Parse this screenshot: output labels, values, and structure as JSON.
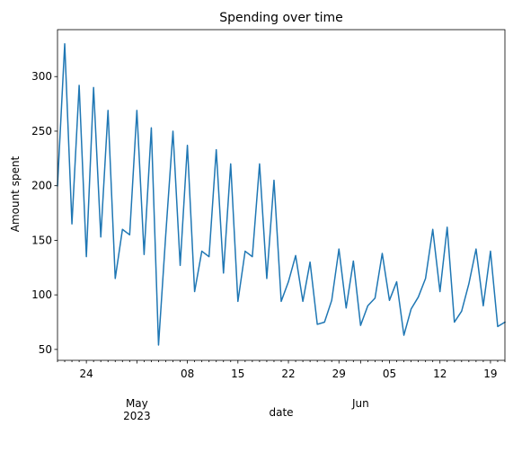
{
  "chart_data": {
    "type": "line",
    "title": "Spending over time",
    "xlabel": "date",
    "ylabel": "Amount spent",
    "grid": false,
    "line_color": "#1f77b4",
    "xlim": [
      "2023-04-20",
      "2023-06-21"
    ],
    "ylim": [
      40,
      343
    ],
    "y_ticks": [
      50,
      100,
      150,
      200,
      250,
      300
    ],
    "x_major_ticks": [
      {
        "date": "2023-04-24",
        "label": "24"
      },
      {
        "date": "2023-05-01",
        "label": "May\n2023"
      },
      {
        "date": "2023-05-08",
        "label": "08"
      },
      {
        "date": "2023-05-15",
        "label": "15"
      },
      {
        "date": "2023-05-22",
        "label": "22"
      },
      {
        "date": "2023-05-29",
        "label": "29"
      },
      {
        "date": "2023-06-01",
        "label": "Jun"
      },
      {
        "date": "2023-06-05",
        "label": "05"
      },
      {
        "date": "2023-06-12",
        "label": "12"
      },
      {
        "date": "2023-06-19",
        "label": "19"
      }
    ],
    "series": [
      {
        "x": [
          "2023-04-20",
          "2023-04-21",
          "2023-04-22",
          "2023-04-23",
          "2023-04-24",
          "2023-04-25",
          "2023-04-26",
          "2023-04-27",
          "2023-04-28",
          "2023-04-29",
          "2023-04-30",
          "2023-05-01",
          "2023-05-02",
          "2023-05-03",
          "2023-05-04",
          "2023-05-05",
          "2023-05-06",
          "2023-05-07",
          "2023-05-08",
          "2023-05-09",
          "2023-05-10",
          "2023-05-11",
          "2023-05-12",
          "2023-05-13",
          "2023-05-14",
          "2023-05-15",
          "2023-05-16",
          "2023-05-17",
          "2023-05-18",
          "2023-05-19",
          "2023-05-20",
          "2023-05-21",
          "2023-05-22",
          "2023-05-23",
          "2023-05-24",
          "2023-05-25",
          "2023-05-26",
          "2023-05-27",
          "2023-05-28",
          "2023-05-29",
          "2023-05-30",
          "2023-05-31",
          "2023-06-01",
          "2023-06-02",
          "2023-06-03",
          "2023-06-04",
          "2023-06-05",
          "2023-06-06",
          "2023-06-07",
          "2023-06-08",
          "2023-06-09",
          "2023-06-10",
          "2023-06-11",
          "2023-06-12",
          "2023-06-13",
          "2023-06-14",
          "2023-06-15",
          "2023-06-16",
          "2023-06-17",
          "2023-06-18",
          "2023-06-19",
          "2023-06-20",
          "2023-06-21"
        ],
        "values": [
          200,
          330,
          165,
          292,
          135,
          290,
          153,
          269,
          115,
          160,
          155,
          269,
          137,
          253,
          54,
          155,
          250,
          127,
          237,
          103,
          140,
          135,
          233,
          120,
          220,
          94,
          140,
          135,
          220,
          115,
          205,
          94,
          112,
          136,
          94,
          130,
          73,
          75,
          95,
          142,
          88,
          131,
          72,
          90,
          97,
          138,
          95,
          112,
          63,
          87,
          98,
          115,
          160,
          103,
          162,
          75,
          85,
          110,
          142,
          90,
          140,
          71,
          75
        ]
      }
    ]
  }
}
